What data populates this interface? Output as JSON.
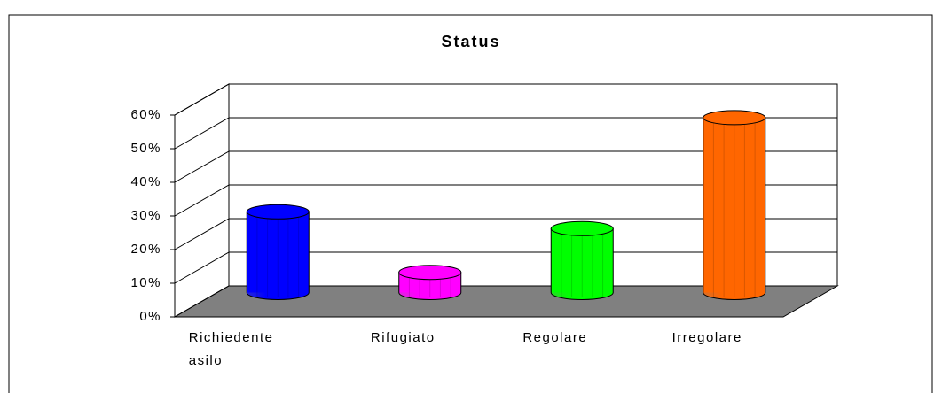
{
  "chart_data": {
    "type": "bar",
    "title": "Status",
    "categories": [
      "Richiedente asilo",
      "Rifugiato",
      "Regolare",
      "Irregolare"
    ],
    "values": [
      24,
      6,
      19,
      52
    ],
    "colors": [
      "#0000ff",
      "#ff00ff",
      "#00ff00",
      "#ff6600"
    ],
    "ylim": [
      0,
      60
    ],
    "yticks": [
      {
        "value": 0,
        "label": "0%"
      },
      {
        "value": 10,
        "label": "10%"
      },
      {
        "value": 20,
        "label": "20%"
      },
      {
        "value": 30,
        "label": "30%"
      },
      {
        "value": 40,
        "label": "40%"
      },
      {
        "value": 50,
        "label": "50%"
      },
      {
        "value": 60,
        "label": "60%"
      }
    ],
    "grid": true
  }
}
